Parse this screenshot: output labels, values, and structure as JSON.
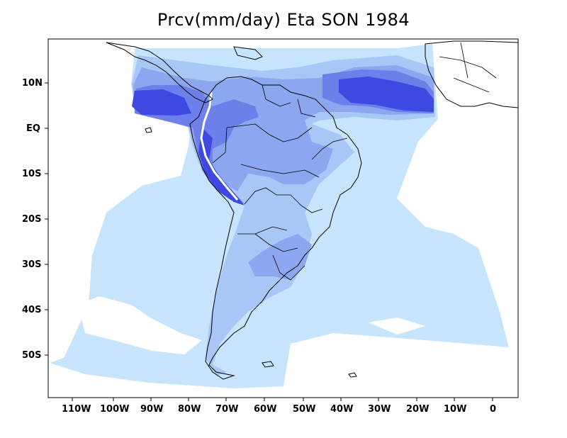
{
  "title": "Prcv(mm/day) Eta SON 1984",
  "colors": {
    "level1": "#c6e4fb",
    "level2": "#a8c6f6",
    "level3": "#8da6f0",
    "level4": "#6d7fe9",
    "level5": "#3f48e0",
    "level6": "#2a2fe6",
    "coast": "#000000",
    "frame": "#000000"
  },
  "y_axis": {
    "labels": [
      "10N",
      "EQ",
      "10S",
      "20S",
      "30S",
      "40S",
      "50S"
    ]
  },
  "x_axis": {
    "labels": [
      "110W",
      "100W",
      "90W",
      "80W",
      "70W",
      "60W",
      "50W",
      "40W",
      "30W",
      "20W",
      "10W",
      "0"
    ]
  }
}
